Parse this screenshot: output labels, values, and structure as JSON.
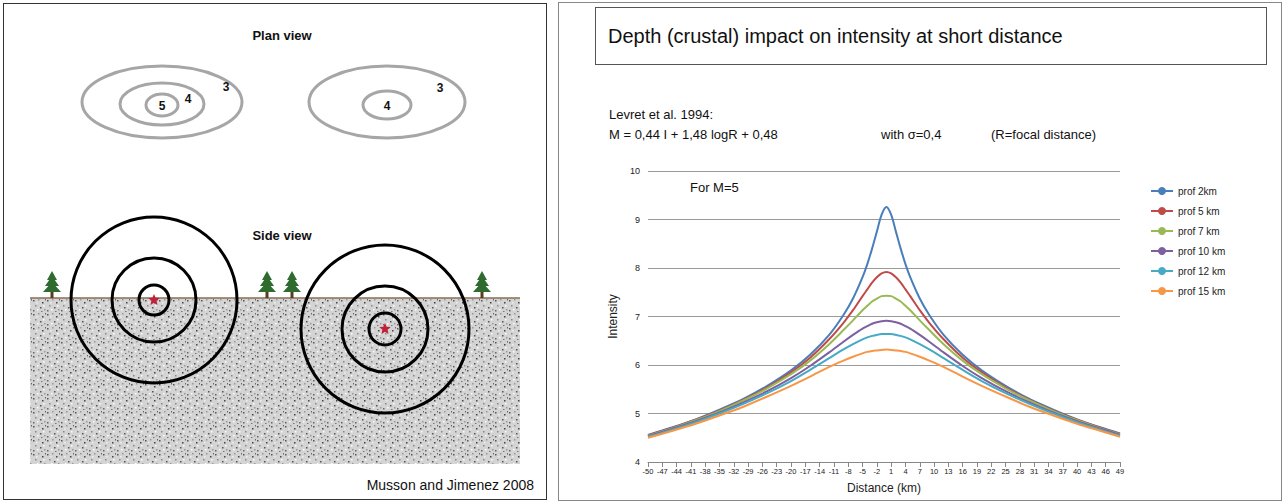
{
  "diagram": {
    "plan_view": {
      "title": "Plan view",
      "left_rings": [
        "5",
        "4",
        "3"
      ],
      "right_rings": [
        "4",
        "3"
      ]
    },
    "side_view": {
      "title": "Side view"
    },
    "credit": "Musson and Jimenez 2008"
  },
  "chart_data": {
    "type": "line",
    "title": "Depth (crustal) impact on intensity at short distance",
    "annotations": [
      "Levret et al. 1994:",
      "M = 0,44 I + 1,48 logR + 0,48",
      "with σ=0,4",
      "(R=focal distance)",
      "For M=5"
    ],
    "x_label": "Distance (km)",
    "y_label": "Intensity",
    "x": [
      -50,
      -45,
      -40,
      -35,
      -30,
      -25,
      -20,
      -16,
      -12,
      -9,
      -7,
      -5,
      -4,
      -3,
      -2,
      -1,
      0,
      1,
      2,
      3,
      4,
      5,
      7,
      9,
      12,
      16,
      20,
      25,
      30,
      35,
      40,
      45,
      49
    ],
    "series": [
      {
        "name": "prof 2km",
        "color": "#4a7ebb",
        "values": [
          4.56,
          4.71,
          4.88,
          5.08,
          5.3,
          5.57,
          5.89,
          6.21,
          6.62,
          7.03,
          7.37,
          7.81,
          8.08,
          8.4,
          8.75,
          9.1,
          9.26,
          9.1,
          8.75,
          8.4,
          8.08,
          7.81,
          7.37,
          7.03,
          6.62,
          6.21,
          5.89,
          5.57,
          5.3,
          5.08,
          4.88,
          4.71,
          4.59
        ]
      },
      {
        "name": "prof 5 km",
        "color": "#be4b48",
        "values": [
          4.55,
          4.7,
          4.87,
          5.06,
          5.28,
          5.54,
          5.85,
          6.15,
          6.53,
          6.87,
          7.13,
          7.42,
          7.56,
          7.7,
          7.81,
          7.89,
          7.92,
          7.89,
          7.81,
          7.7,
          7.56,
          7.42,
          7.13,
          6.87,
          6.53,
          6.15,
          5.85,
          5.54,
          5.28,
          5.06,
          4.87,
          4.7,
          4.58
        ]
      },
      {
        "name": "prof 7 km",
        "color": "#98b954",
        "values": [
          4.54,
          4.69,
          4.86,
          5.05,
          5.27,
          5.52,
          5.81,
          6.09,
          6.43,
          6.72,
          6.92,
          7.13,
          7.22,
          7.31,
          7.37,
          7.42,
          7.43,
          7.42,
          7.37,
          7.31,
          7.22,
          7.13,
          6.92,
          6.72,
          6.43,
          6.09,
          5.81,
          5.52,
          5.27,
          5.05,
          4.86,
          4.69,
          4.57
        ]
      },
      {
        "name": "prof 10 km",
        "color": "#7d60a0",
        "values": [
          4.53,
          4.68,
          4.84,
          5.02,
          5.23,
          5.46,
          5.73,
          5.98,
          6.26,
          6.48,
          6.62,
          6.75,
          6.8,
          6.85,
          6.88,
          6.9,
          6.91,
          6.9,
          6.88,
          6.85,
          6.8,
          6.75,
          6.62,
          6.48,
          6.26,
          5.98,
          5.73,
          5.46,
          5.23,
          5.02,
          4.84,
          4.68,
          4.56
        ]
      },
      {
        "name": "prof 12 km",
        "color": "#46aac5",
        "values": [
          4.52,
          4.66,
          4.82,
          5.0,
          5.2,
          5.42,
          5.67,
          5.9,
          6.14,
          6.32,
          6.43,
          6.53,
          6.57,
          6.6,
          6.62,
          6.64,
          6.64,
          6.64,
          6.62,
          6.6,
          6.57,
          6.53,
          6.43,
          6.32,
          6.14,
          5.9,
          5.67,
          5.42,
          5.2,
          5.0,
          4.82,
          4.66,
          4.54
        ]
      },
      {
        "name": "prof 15 km",
        "color": "#f79646",
        "values": [
          4.5,
          4.64,
          4.79,
          4.96,
          5.14,
          5.35,
          5.57,
          5.76,
          5.96,
          6.09,
          6.17,
          6.24,
          6.27,
          6.29,
          6.3,
          6.31,
          6.32,
          6.31,
          6.3,
          6.29,
          6.27,
          6.24,
          6.17,
          6.09,
          5.96,
          5.76,
          5.57,
          5.35,
          5.14,
          4.96,
          4.79,
          4.64,
          4.52
        ]
      }
    ],
    "xlim": [
      -50,
      49
    ],
    "xticks": [
      -50,
      -47,
      -44,
      -41,
      -38,
      -35,
      -32,
      -29,
      -26,
      -23,
      -20,
      -17,
      -14,
      -11,
      -8,
      -5,
      -2,
      1,
      4,
      7,
      10,
      13,
      16,
      19,
      22,
      25,
      28,
      31,
      34,
      37,
      40,
      43,
      46,
      49
    ],
    "ylim": [
      4,
      10
    ],
    "yticks": [
      4,
      5,
      6,
      7,
      8,
      9,
      10
    ],
    "grid": true,
    "legend": "right",
    "marker": "none",
    "line_style": "solid"
  }
}
